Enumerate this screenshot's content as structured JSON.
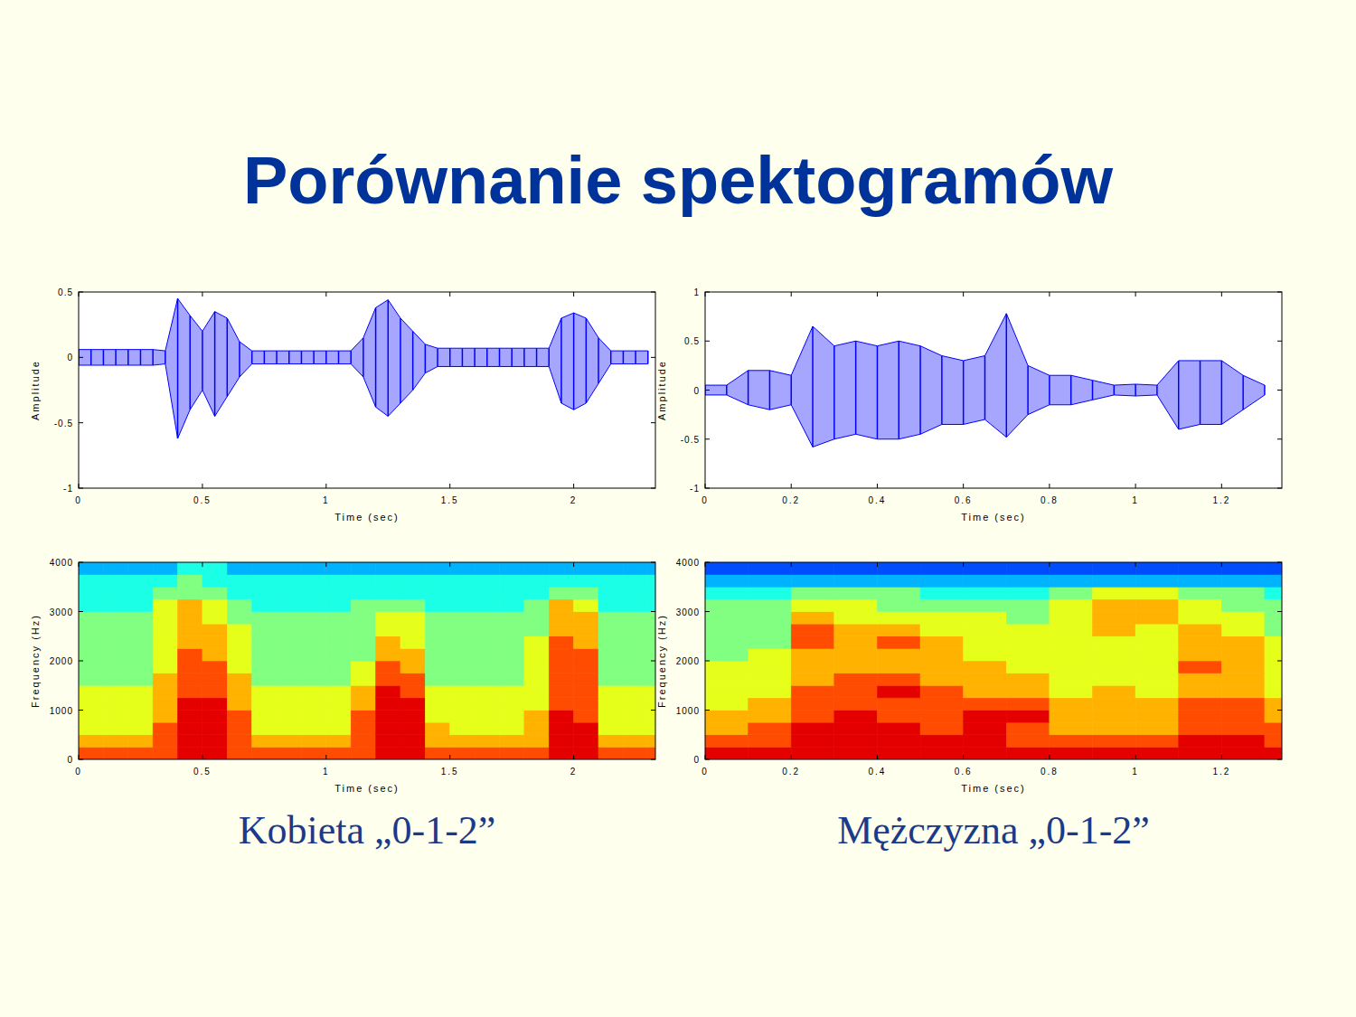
{
  "title": "Porównanie spektogramów",
  "captions": [
    "Kobieta „0-1-2”",
    "Mężczyzna „0-1-2”"
  ],
  "chart_data": [
    {
      "type": "envelope",
      "x": [
        0,
        0.05,
        0.1,
        0.15,
        0.2,
        0.25,
        0.3,
        0.35,
        0.4,
        0.45,
        0.5,
        0.55,
        0.6,
        0.65,
        0.7,
        0.75,
        0.8,
        0.85,
        0.9,
        0.95,
        1,
        1.05,
        1.1,
        1.15,
        1.2,
        1.25,
        1.3,
        1.35,
        1.4,
        1.45,
        1.5,
        1.55,
        1.6,
        1.65,
        1.7,
        1.75,
        1.8,
        1.85,
        1.9,
        1.95,
        2,
        2.05,
        2.1,
        2.15,
        2.2,
        2.25,
        2.3
      ],
      "series": [
        {
          "color": "#0000ff",
          "values": [
            0.06,
            0.06,
            0.06,
            0.06,
            0.06,
            0.06,
            0.06,
            0.05,
            0.45,
            0.32,
            0.2,
            0.35,
            0.3,
            0.12,
            0.05,
            0.05,
            0.05,
            0.05,
            0.05,
            0.05,
            0.05,
            0.05,
            0.05,
            0.15,
            0.38,
            0.44,
            0.3,
            0.2,
            0.1,
            0.07,
            0.07,
            0.07,
            0.07,
            0.07,
            0.07,
            0.07,
            0.07,
            0.07,
            0.07,
            0.3,
            0.34,
            0.3,
            0.15,
            0.05,
            0.05,
            0.05,
            0.05
          ]
        },
        {
          "color": "#0000ff",
          "values": [
            -0.06,
            -0.06,
            -0.06,
            -0.06,
            -0.06,
            -0.06,
            -0.06,
            -0.05,
            -0.62,
            -0.4,
            -0.25,
            -0.45,
            -0.3,
            -0.15,
            -0.05,
            -0.05,
            -0.05,
            -0.05,
            -0.05,
            -0.05,
            -0.05,
            -0.05,
            -0.05,
            -0.15,
            -0.38,
            -0.45,
            -0.35,
            -0.25,
            -0.12,
            -0.07,
            -0.07,
            -0.07,
            -0.07,
            -0.07,
            -0.07,
            -0.07,
            -0.07,
            -0.07,
            -0.07,
            -0.35,
            -0.4,
            -0.35,
            -0.2,
            -0.05,
            -0.05,
            -0.05,
            -0.05
          ]
        }
      ],
      "xlim": [
        0,
        2.33
      ],
      "xticks": [
        0,
        0.5,
        1,
        1.5,
        2
      ],
      "ylim": [
        -1,
        0.5
      ],
      "yticks": [
        -1,
        -0.5,
        0,
        0.5
      ],
      "x_label": "Time (sec)",
      "y_label": "Amplitude"
    },
    {
      "type": "envelope",
      "x": [
        0,
        0.05,
        0.1,
        0.15,
        0.2,
        0.25,
        0.3,
        0.35,
        0.4,
        0.45,
        0.5,
        0.55,
        0.6,
        0.65,
        0.7,
        0.75,
        0.8,
        0.85,
        0.9,
        0.95,
        1,
        1.05,
        1.1,
        1.15,
        1.2,
        1.25,
        1.3
      ],
      "series": [
        {
          "color": "#0000ff",
          "values": [
            0.05,
            0.05,
            0.2,
            0.2,
            0.15,
            0.65,
            0.45,
            0.5,
            0.45,
            0.5,
            0.45,
            0.35,
            0.3,
            0.35,
            0.78,
            0.25,
            0.15,
            0.15,
            0.1,
            0.05,
            0.06,
            0.05,
            0.3,
            0.3,
            0.3,
            0.15,
            0.05
          ]
        },
        {
          "color": "#0000ff",
          "values": [
            -0.05,
            -0.05,
            -0.15,
            -0.2,
            -0.15,
            -0.58,
            -0.5,
            -0.45,
            -0.5,
            -0.5,
            -0.45,
            -0.35,
            -0.35,
            -0.3,
            -0.48,
            -0.25,
            -0.15,
            -0.15,
            -0.1,
            -0.05,
            -0.06,
            -0.05,
            -0.4,
            -0.35,
            -0.35,
            -0.2,
            -0.05
          ]
        }
      ],
      "xlim": [
        0,
        1.34
      ],
      "xticks": [
        0,
        0.2,
        0.4,
        0.6,
        0.8,
        1,
        1.2
      ],
      "ylim": [
        -1,
        1
      ],
      "yticks": [
        -1,
        -0.5,
        0,
        0.5,
        1
      ],
      "x_label": "Time (sec)",
      "y_label": "Amplitude"
    },
    {
      "type": "heatmap",
      "x": [
        0,
        0.1,
        0.2,
        0.3,
        0.4,
        0.5,
        0.6,
        0.7,
        0.8,
        0.9,
        1,
        1.1,
        1.2,
        1.3,
        1.4,
        1.5,
        1.6,
        1.7,
        1.8,
        1.9,
        2,
        2.1,
        2.2,
        2.3,
        2.4
      ],
      "y": [
        0,
        250,
        500,
        750,
        1000,
        1250,
        1500,
        1750,
        2000,
        2250,
        2500,
        2750,
        3000,
        3250,
        3500,
        3750,
        4000
      ],
      "values": [
        [
          8,
          8,
          8,
          8,
          9,
          9,
          8,
          8,
          8,
          8,
          8,
          8,
          9,
          9,
          8,
          8,
          8,
          8,
          8,
          9,
          9,
          8,
          8,
          8
        ],
        [
          7,
          7,
          7,
          8,
          9,
          9,
          8,
          7,
          7,
          7,
          7,
          8,
          9,
          9,
          7,
          7,
          7,
          7,
          7,
          9,
          9,
          7,
          7,
          7
        ],
        [
          6,
          6,
          6,
          8,
          9,
          9,
          8,
          6,
          6,
          6,
          6,
          8,
          9,
          9,
          7,
          6,
          6,
          6,
          7,
          9,
          9,
          6,
          6,
          6
        ],
        [
          6,
          6,
          6,
          7,
          9,
          9,
          8,
          6,
          6,
          6,
          6,
          8,
          9,
          9,
          6,
          6,
          6,
          6,
          7,
          9,
          8,
          6,
          6,
          6
        ],
        [
          6,
          6,
          6,
          7,
          9,
          9,
          7,
          6,
          6,
          6,
          6,
          7,
          9,
          9,
          6,
          6,
          6,
          6,
          6,
          8,
          8,
          6,
          6,
          6
        ],
        [
          6,
          6,
          6,
          7,
          8,
          8,
          7,
          6,
          6,
          6,
          6,
          7,
          9,
          8,
          6,
          6,
          6,
          6,
          6,
          8,
          8,
          6,
          6,
          6
        ],
        [
          5,
          5,
          5,
          7,
          8,
          8,
          7,
          5,
          5,
          5,
          5,
          6,
          8,
          8,
          5,
          5,
          5,
          5,
          6,
          8,
          8,
          5,
          5,
          5
        ],
        [
          5,
          5,
          5,
          6,
          8,
          8,
          6,
          5,
          5,
          5,
          5,
          6,
          8,
          7,
          5,
          5,
          5,
          5,
          6,
          8,
          8,
          5,
          5,
          5
        ],
        [
          5,
          5,
          5,
          6,
          8,
          7,
          6,
          5,
          5,
          5,
          5,
          5,
          7,
          7,
          5,
          5,
          5,
          5,
          6,
          8,
          8,
          5,
          5,
          5
        ],
        [
          5,
          5,
          5,
          6,
          7,
          7,
          6,
          5,
          5,
          5,
          5,
          5,
          7,
          6,
          5,
          5,
          5,
          5,
          6,
          8,
          7,
          5,
          5,
          5
        ],
        [
          5,
          5,
          5,
          6,
          7,
          7,
          6,
          5,
          5,
          5,
          5,
          5,
          6,
          6,
          5,
          5,
          5,
          5,
          5,
          7,
          7,
          5,
          5,
          5
        ],
        [
          5,
          5,
          5,
          6,
          7,
          6,
          5,
          5,
          5,
          5,
          5,
          5,
          6,
          6,
          5,
          5,
          5,
          5,
          5,
          7,
          7,
          5,
          5,
          5
        ],
        [
          4,
          4,
          4,
          6,
          7,
          6,
          5,
          4,
          4,
          4,
          4,
          5,
          5,
          5,
          4,
          4,
          4,
          4,
          5,
          7,
          6,
          4,
          4,
          4
        ],
        [
          4,
          4,
          4,
          5,
          5,
          5,
          4,
          4,
          4,
          4,
          4,
          4,
          4,
          4,
          4,
          4,
          4,
          4,
          4,
          5,
          5,
          4,
          4,
          4
        ],
        [
          4,
          4,
          4,
          4,
          5,
          4,
          4,
          4,
          4,
          4,
          4,
          4,
          4,
          4,
          4,
          4,
          4,
          4,
          4,
          4,
          4,
          4,
          4,
          4
        ],
        [
          3,
          3,
          3,
          3,
          4,
          4,
          3,
          3,
          3,
          3,
          3,
          3,
          3,
          3,
          3,
          3,
          3,
          3,
          3,
          3,
          3,
          3,
          3,
          3
        ]
      ],
      "zlim": [
        0,
        10
      ],
      "xlim": [
        0,
        2.33
      ],
      "xticks": [
        0,
        0.5,
        1,
        1.5,
        2
      ],
      "ylim": [
        0,
        4000
      ],
      "yticks": [
        0,
        1000,
        2000,
        3000,
        4000
      ],
      "x_label": "Time (sec)",
      "y_label": "Frequency (Hz)"
    },
    {
      "type": "heatmap",
      "x": [
        0,
        0.1,
        0.2,
        0.3,
        0.4,
        0.5,
        0.6,
        0.7,
        0.8,
        0.9,
        1,
        1.1,
        1.2,
        1.3,
        1.4
      ],
      "y": [
        0,
        250,
        500,
        750,
        1000,
        1250,
        1500,
        1750,
        2000,
        2250,
        2500,
        2750,
        3000,
        3250,
        3500,
        3750,
        4000
      ],
      "values": [
        [
          9,
          9,
          9,
          9,
          9,
          9,
          9,
          9,
          9,
          9,
          9,
          9,
          9,
          9
        ],
        [
          8,
          8,
          9,
          9,
          9,
          9,
          9,
          8,
          8,
          8,
          8,
          9,
          9,
          8
        ],
        [
          7,
          8,
          9,
          9,
          9,
          8,
          9,
          8,
          7,
          7,
          7,
          8,
          8,
          8
        ],
        [
          7,
          7,
          8,
          9,
          8,
          8,
          9,
          9,
          7,
          7,
          7,
          8,
          8,
          7
        ],
        [
          6,
          7,
          8,
          8,
          8,
          8,
          8,
          8,
          7,
          7,
          7,
          8,
          8,
          7
        ],
        [
          6,
          6,
          8,
          8,
          9,
          8,
          7,
          7,
          6,
          7,
          6,
          7,
          7,
          6
        ],
        [
          6,
          6,
          7,
          8,
          8,
          7,
          7,
          7,
          6,
          6,
          6,
          7,
          7,
          6
        ],
        [
          6,
          6,
          7,
          7,
          7,
          7,
          7,
          6,
          6,
          6,
          6,
          8,
          7,
          6
        ],
        [
          5,
          6,
          7,
          7,
          7,
          7,
          6,
          6,
          6,
          6,
          6,
          7,
          7,
          6
        ],
        [
          5,
          5,
          8,
          7,
          8,
          7,
          6,
          6,
          6,
          6,
          6,
          7,
          7,
          6
        ],
        [
          5,
          5,
          8,
          7,
          7,
          6,
          6,
          6,
          6,
          7,
          6,
          7,
          6,
          5
        ],
        [
          5,
          5,
          7,
          6,
          6,
          6,
          6,
          5,
          6,
          7,
          7,
          6,
          6,
          5
        ],
        [
          5,
          5,
          6,
          6,
          5,
          5,
          5,
          5,
          6,
          7,
          7,
          6,
          5,
          5
        ],
        [
          4,
          4,
          5,
          5,
          5,
          4,
          4,
          4,
          5,
          6,
          6,
          5,
          5,
          4
        ],
        [
          3,
          3,
          3,
          3,
          3,
          3,
          3,
          3,
          3,
          3,
          3,
          3,
          3,
          3
        ],
        [
          2,
          2,
          2,
          2,
          2,
          2,
          2,
          2,
          2,
          2,
          2,
          2,
          2,
          2
        ]
      ],
      "zlim": [
        0,
        10
      ],
      "xlim": [
        0,
        1.34
      ],
      "xticks": [
        0,
        0.2,
        0.4,
        0.6,
        0.8,
        1,
        1.2
      ],
      "ylim": [
        0,
        4000
      ],
      "yticks": [
        0,
        1000,
        2000,
        3000,
        4000
      ],
      "x_label": "Time (sec)",
      "y_label": "Frequency (Hz)"
    }
  ]
}
